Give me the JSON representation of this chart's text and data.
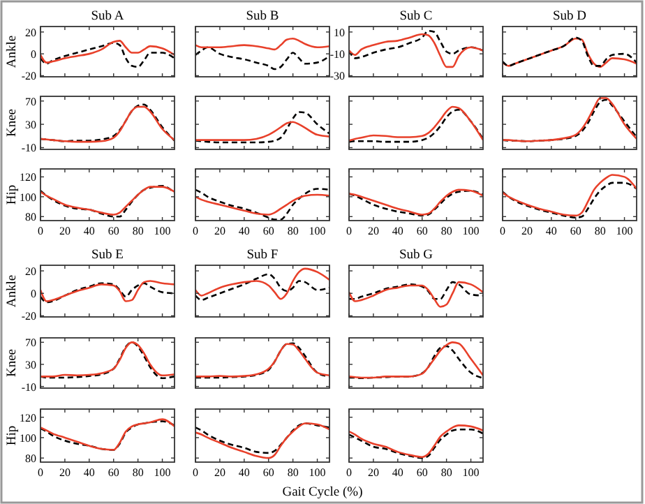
{
  "chart_data": [
    {
      "type": "line",
      "title": "Sub A",
      "ylabel": "Ankle",
      "x": [
        0,
        5,
        10,
        20,
        30,
        40,
        50,
        60,
        65,
        70,
        75,
        80,
        85,
        90,
        100,
        110
      ],
      "xlim": [
        0,
        110
      ],
      "xticks": [
        0,
        20,
        40,
        60,
        80,
        100
      ],
      "ylim": [
        -21,
        25
      ],
      "yticks": [
        -20,
        0,
        20
      ],
      "tick_labels": "y",
      "series": [
        {
          "color": "#000000",
          "line_style": "dashed",
          "values": [
            -4,
            -9,
            -6,
            -2,
            1,
            4,
            7,
            10,
            8,
            -4,
            -11,
            -12,
            -6,
            1,
            1,
            -4
          ]
        },
        {
          "color": "#e8402a",
          "line_style": "solid",
          "values": [
            -1,
            -8,
            -7,
            -4,
            -2,
            0,
            4,
            11,
            12,
            6,
            1,
            1,
            4,
            7,
            5,
            -1
          ]
        }
      ]
    },
    {
      "type": "line",
      "ylabel": "Knee",
      "x": [
        0,
        5,
        10,
        20,
        30,
        40,
        50,
        60,
        65,
        70,
        75,
        80,
        85,
        90,
        100,
        110
      ],
      "xlim": [
        0,
        110
      ],
      "xticks": [
        0,
        20,
        40,
        60,
        80,
        100
      ],
      "ylim": [
        -13,
        78
      ],
      "yticks": [
        -10,
        30,
        70
      ],
      "tick_labels": "y",
      "series": [
        {
          "color": "#000000",
          "line_style": "dashed",
          "values": [
            5,
            4,
            3,
            1,
            2,
            2,
            4,
            10,
            20,
            36,
            53,
            62,
            64,
            55,
            25,
            2
          ]
        },
        {
          "color": "#e8402a",
          "line_style": "solid",
          "values": [
            5,
            4,
            3,
            1,
            0,
            0,
            1,
            7,
            18,
            36,
            53,
            60,
            60,
            52,
            22,
            3
          ]
        }
      ]
    },
    {
      "type": "line",
      "ylabel": "Hip",
      "x": [
        0,
        5,
        10,
        20,
        30,
        40,
        50,
        60,
        65,
        70,
        75,
        80,
        85,
        90,
        100,
        110
      ],
      "xlim": [
        0,
        110
      ],
      "xticks": [
        0,
        20,
        40,
        60,
        80,
        100
      ],
      "ylim": [
        76,
        128
      ],
      "yticks": [
        80,
        100,
        120
      ],
      "series": [
        {
          "color": "#000000",
          "line_style": "dashed",
          "values": [
            106,
            101,
            97,
            91,
            88,
            87,
            83,
            80,
            80,
            87,
            95,
            102,
            107,
            109,
            111,
            104
          ]
        },
        {
          "color": "#e8402a",
          "line_style": "solid",
          "values": [
            105,
            101,
            98,
            92,
            89,
            87,
            84,
            82,
            84,
            90,
            96,
            102,
            107,
            110,
            110,
            105
          ]
        }
      ]
    },
    {
      "type": "line",
      "title": "Sub B",
      "x": [
        0,
        5,
        10,
        20,
        30,
        40,
        50,
        60,
        65,
        70,
        75,
        80,
        85,
        90,
        100,
        110
      ],
      "xlim": [
        0,
        110
      ],
      "xticks": [
        0,
        20,
        40,
        60,
        80,
        100
      ],
      "ylim": [
        -21,
        25
      ],
      "yticks": [
        -20,
        0,
        20
      ],
      "tick_labels": false,
      "series": [
        {
          "color": "#000000",
          "line_style": "dashed",
          "values": [
            -1,
            3,
            6,
            0,
            -3,
            -5,
            -8,
            -11,
            -14,
            -12,
            -5,
            1,
            -4,
            -9,
            -8,
            -2
          ]
        },
        {
          "color": "#e8402a",
          "line_style": "solid",
          "values": [
            8,
            6,
            6,
            6,
            7,
            8,
            7,
            5,
            4,
            8,
            13,
            14,
            12,
            9,
            6,
            7
          ]
        }
      ]
    },
    {
      "type": "line",
      "x": [
        0,
        5,
        10,
        20,
        30,
        40,
        50,
        60,
        65,
        70,
        75,
        80,
        85,
        90,
        100,
        110
      ],
      "xlim": [
        0,
        110
      ],
      "xticks": [
        0,
        20,
        40,
        60,
        80,
        100
      ],
      "ylim": [
        -13,
        78
      ],
      "yticks": [
        -10,
        30,
        70
      ],
      "tick_labels": false,
      "series": [
        {
          "color": "#000000",
          "line_style": "dashed",
          "values": [
            2,
            1,
            0,
            -1,
            -1,
            -1,
            -1,
            0,
            2,
            7,
            22,
            40,
            51,
            50,
            30,
            14
          ]
        },
        {
          "color": "#e8402a",
          "line_style": "solid",
          "values": [
            3,
            3,
            3,
            3,
            3,
            3,
            5,
            12,
            18,
            25,
            32,
            34,
            30,
            24,
            12,
            9
          ]
        }
      ]
    },
    {
      "type": "line",
      "x": [
        0,
        5,
        10,
        20,
        30,
        40,
        50,
        60,
        65,
        70,
        75,
        80,
        85,
        90,
        100,
        110
      ],
      "xlim": [
        0,
        110
      ],
      "xticks": [
        0,
        20,
        40,
        60,
        80,
        100
      ],
      "ylim": [
        76,
        128
      ],
      "yticks": [
        80,
        100,
        120
      ],
      "tick_labels": "x",
      "series": [
        {
          "color": "#000000",
          "line_style": "dashed",
          "values": [
            107,
            104,
            100,
            95,
            91,
            88,
            84,
            79,
            77,
            77,
            83,
            92,
            98,
            103,
            108,
            107
          ]
        },
        {
          "color": "#e8402a",
          "line_style": "solid",
          "values": [
            100,
            97,
            95,
            92,
            89,
            86,
            83,
            82,
            84,
            88,
            92,
            96,
            99,
            101,
            102,
            101
          ]
        }
      ]
    },
    {
      "type": "line",
      "title": "Sub C",
      "x": [
        0,
        5,
        10,
        20,
        30,
        40,
        50,
        60,
        65,
        70,
        75,
        80,
        85,
        90,
        100,
        110
      ],
      "xlim": [
        0,
        110
      ],
      "xticks": [
        0,
        20,
        40,
        60,
        80,
        100
      ],
      "ylim": [
        -31,
        15
      ],
      "yticks": [
        -30,
        -10,
        10
      ],
      "tick_labels": "y",
      "series": [
        {
          "color": "#000000",
          "line_style": "dashed",
          "values": [
            -7,
            -14,
            -13,
            -9,
            -6,
            -4,
            0,
            5,
            11,
            10,
            1,
            -8,
            -10,
            -7,
            -4,
            -7
          ]
        },
        {
          "color": "#e8402a",
          "line_style": "solid",
          "values": [
            -7,
            -11,
            -6,
            -2,
            1,
            2,
            5,
            8,
            7,
            0,
            -12,
            -22,
            -22,
            -12,
            -4,
            -7
          ]
        }
      ]
    },
    {
      "type": "line",
      "x": [
        0,
        5,
        10,
        20,
        30,
        40,
        50,
        60,
        65,
        70,
        75,
        80,
        85,
        90,
        100,
        110
      ],
      "xlim": [
        0,
        110
      ],
      "xticks": [
        0,
        20,
        40,
        60,
        80,
        100
      ],
      "ylim": [
        -13,
        78
      ],
      "yticks": [
        -10,
        30,
        70
      ],
      "tick_labels": false,
      "series": [
        {
          "color": "#000000",
          "line_style": "dashed",
          "values": [
            0,
            1,
            1,
            1,
            0,
            0,
            0,
            3,
            7,
            15,
            27,
            42,
            52,
            55,
            35,
            5
          ]
        },
        {
          "color": "#e8402a",
          "line_style": "solid",
          "values": [
            2,
            5,
            7,
            11,
            10,
            8,
            8,
            10,
            15,
            25,
            38,
            52,
            60,
            58,
            35,
            3
          ]
        }
      ]
    },
    {
      "type": "line",
      "x": [
        0,
        5,
        10,
        20,
        30,
        40,
        50,
        60,
        65,
        70,
        75,
        80,
        85,
        90,
        100,
        110
      ],
      "xlim": [
        0,
        110
      ],
      "xticks": [
        0,
        20,
        40,
        60,
        80,
        100
      ],
      "ylim": [
        76,
        128
      ],
      "yticks": [
        80,
        100,
        120
      ],
      "tick_labels": "x",
      "series": [
        {
          "color": "#000000",
          "line_style": "dashed",
          "values": [
            103,
            101,
            98,
            92,
            88,
            85,
            83,
            81,
            82,
            87,
            93,
            99,
            103,
            105,
            106,
            102
          ]
        },
        {
          "color": "#e8402a",
          "line_style": "solid",
          "values": [
            103,
            102,
            100,
            96,
            92,
            88,
            85,
            82,
            83,
            88,
            95,
            101,
            105,
            107,
            106,
            101
          ]
        }
      ]
    },
    {
      "type": "line",
      "title": "Sub D",
      "x": [
        0,
        5,
        10,
        20,
        30,
        40,
        50,
        60,
        65,
        70,
        75,
        80,
        85,
        90,
        100,
        110
      ],
      "xlim": [
        0,
        110
      ],
      "xticks": [
        0,
        20,
        40,
        60,
        80,
        100
      ],
      "ylim": [
        -21,
        25
      ],
      "yticks": [
        -20,
        0,
        20
      ],
      "tick_labels": false,
      "series": [
        {
          "color": "#e8402a",
          "line_style": "solid",
          "values": [
            -8,
            -11,
            -9,
            -5,
            -1,
            3,
            7,
            14,
            13,
            0,
            -9,
            -12,
            -8,
            -4,
            -5,
            -9
          ]
        },
        {
          "color": "#000000",
          "line_style": "dashed",
          "values": [
            -7,
            -11,
            -9,
            -5,
            -1,
            3,
            7,
            15,
            12,
            -2,
            -11,
            -11,
            -5,
            -1,
            0,
            -8
          ]
        }
      ]
    },
    {
      "type": "line",
      "x": [
        0,
        5,
        10,
        20,
        30,
        40,
        50,
        60,
        65,
        70,
        75,
        80,
        85,
        90,
        100,
        110
      ],
      "xlim": [
        0,
        110
      ],
      "xticks": [
        0,
        20,
        40,
        60,
        80,
        100
      ],
      "ylim": [
        -13,
        78
      ],
      "yticks": [
        -10,
        30,
        70
      ],
      "tick_labels": false,
      "series": [
        {
          "color": "#000000",
          "line_style": "dashed",
          "values": [
            3,
            2,
            2,
            1,
            2,
            3,
            5,
            10,
            18,
            32,
            52,
            68,
            72,
            62,
            35,
            8
          ]
        },
        {
          "color": "#e8402a",
          "line_style": "solid",
          "values": [
            3,
            3,
            2,
            1,
            2,
            3,
            6,
            12,
            22,
            38,
            58,
            75,
            75,
            65,
            30,
            5
          ]
        }
      ]
    },
    {
      "type": "line",
      "x": [
        0,
        5,
        10,
        20,
        30,
        40,
        50,
        60,
        65,
        70,
        75,
        80,
        85,
        90,
        100,
        110
      ],
      "xlim": [
        0,
        110
      ],
      "xticks": [
        0,
        20,
        40,
        60,
        80,
        100
      ],
      "ylim": [
        76,
        128
      ],
      "yticks": [
        80,
        100,
        120
      ],
      "tick_labels": "x",
      "series": [
        {
          "color": "#000000",
          "line_style": "dashed",
          "values": [
            105,
            100,
            96,
            91,
            87,
            84,
            81,
            79,
            80,
            88,
            98,
            106,
            111,
            114,
            114,
            108
          ]
        },
        {
          "color": "#e8402a",
          "line_style": "solid",
          "values": [
            104,
            100,
            97,
            92,
            88,
            85,
            82,
            81,
            84,
            95,
            107,
            114,
            119,
            122,
            120,
            108
          ]
        }
      ]
    },
    {
      "type": "line",
      "title": "Sub E",
      "ylabel": "Ankle",
      "x": [
        0,
        5,
        10,
        20,
        30,
        40,
        50,
        60,
        65,
        70,
        75,
        80,
        85,
        90,
        100,
        110
      ],
      "xlim": [
        0,
        110
      ],
      "xticks": [
        0,
        20,
        40,
        60,
        80,
        100
      ],
      "ylim": [
        -21,
        25
      ],
      "yticks": [
        -20,
        0,
        20
      ],
      "tick_labels": "y",
      "series": [
        {
          "color": "#000000",
          "line_style": "dashed",
          "values": [
            -3,
            -8,
            -7,
            -2,
            3,
            6,
            9,
            8,
            3,
            -3,
            3,
            7,
            9,
            6,
            1,
            0
          ]
        },
        {
          "color": "#e8402a",
          "line_style": "solid",
          "values": [
            3,
            -7,
            -6,
            -2,
            2,
            5,
            8,
            7,
            2,
            -7,
            -6,
            3,
            10,
            11,
            9,
            8
          ]
        }
      ]
    },
    {
      "type": "line",
      "ylabel": "Knee",
      "x": [
        0,
        5,
        10,
        20,
        30,
        40,
        50,
        60,
        65,
        70,
        75,
        80,
        85,
        90,
        100,
        110
      ],
      "xlim": [
        0,
        110
      ],
      "xticks": [
        0,
        20,
        40,
        60,
        80,
        100
      ],
      "ylim": [
        -13,
        78
      ],
      "yticks": [
        -10,
        30,
        70
      ],
      "tick_labels": "y",
      "series": [
        {
          "color": "#000000",
          "line_style": "dashed",
          "values": [
            8,
            6,
            6,
            6,
            7,
            9,
            12,
            22,
            40,
            62,
            70,
            62,
            45,
            25,
            5,
            8
          ]
        },
        {
          "color": "#e8402a",
          "line_style": "solid",
          "values": [
            8,
            8,
            8,
            11,
            10,
            11,
            14,
            22,
            38,
            60,
            70,
            65,
            50,
            30,
            10,
            12
          ]
        }
      ]
    },
    {
      "type": "line",
      "ylabel": "Hip",
      "x": [
        0,
        5,
        10,
        20,
        30,
        40,
        50,
        60,
        65,
        70,
        75,
        80,
        85,
        90,
        100,
        110
      ],
      "xlim": [
        0,
        110
      ],
      "xticks": [
        0,
        20,
        40,
        60,
        80,
        100
      ],
      "ylim": [
        76,
        128
      ],
      "yticks": [
        80,
        100,
        120
      ],
      "series": [
        {
          "color": "#000000",
          "line_style": "dashed",
          "values": [
            109,
            106,
            102,
            97,
            94,
            92,
            89,
            88,
            94,
            105,
            110,
            113,
            114,
            115,
            116,
            112
          ]
        },
        {
          "color": "#e8402a",
          "line_style": "solid",
          "values": [
            110,
            107,
            104,
            100,
            96,
            92,
            89,
            88,
            95,
            106,
            111,
            113,
            114,
            115,
            118,
            111
          ]
        }
      ]
    },
    {
      "type": "line",
      "title": "Sub F",
      "x": [
        0,
        5,
        10,
        20,
        30,
        40,
        50,
        60,
        65,
        70,
        75,
        80,
        85,
        90,
        100,
        110
      ],
      "xlim": [
        0,
        110
      ],
      "xticks": [
        0,
        20,
        40,
        60,
        80,
        100
      ],
      "ylim": [
        -21,
        25
      ],
      "yticks": [
        -20,
        0,
        20
      ],
      "tick_labels": false,
      "series": [
        {
          "color": "#000000",
          "line_style": "dashed",
          "values": [
            -2,
            -6,
            -4,
            0,
            4,
            8,
            13,
            17,
            13,
            5,
            2,
            5,
            11,
            10,
            3,
            5
          ]
        },
        {
          "color": "#e8402a",
          "line_style": "solid",
          "values": [
            3,
            -2,
            0,
            5,
            8,
            10,
            11,
            7,
            1,
            -5,
            0,
            11,
            19,
            22,
            19,
            12
          ]
        }
      ]
    },
    {
      "type": "line",
      "x": [
        0,
        5,
        10,
        20,
        30,
        40,
        50,
        60,
        65,
        70,
        75,
        80,
        85,
        90,
        100,
        110
      ],
      "xlim": [
        0,
        110
      ],
      "xticks": [
        0,
        20,
        40,
        60,
        80,
        100
      ],
      "ylim": [
        -13,
        78
      ],
      "yticks": [
        -10,
        30,
        70
      ],
      "tick_labels": false,
      "series": [
        {
          "color": "#000000",
          "line_style": "dashed",
          "values": [
            6,
            6,
            6,
            6,
            7,
            8,
            11,
            20,
            35,
            55,
            67,
            68,
            60,
            45,
            15,
            8
          ]
        },
        {
          "color": "#e8402a",
          "line_style": "solid",
          "values": [
            8,
            8,
            8,
            9,
            8,
            9,
            12,
            22,
            35,
            55,
            67,
            66,
            55,
            40,
            15,
            10
          ]
        }
      ]
    },
    {
      "type": "line",
      "xlabel": "Gait Cycle (%)",
      "x": [
        0,
        5,
        10,
        20,
        30,
        40,
        50,
        60,
        65,
        70,
        75,
        80,
        85,
        90,
        100,
        110
      ],
      "xlim": [
        0,
        110
      ],
      "xticks": [
        0,
        20,
        40,
        60,
        80,
        100
      ],
      "ylim": [
        76,
        128
      ],
      "yticks": [
        80,
        100,
        120
      ],
      "tick_labels": "x",
      "series": [
        {
          "color": "#000000",
          "line_style": "dashed",
          "values": [
            110,
            107,
            103,
            97,
            93,
            90,
            86,
            85,
            87,
            93,
            100,
            107,
            112,
            114,
            112,
            110
          ]
        },
        {
          "color": "#e8402a",
          "line_style": "solid",
          "values": [
            105,
            103,
            100,
            95,
            90,
            86,
            82,
            80,
            83,
            92,
            100,
            106,
            111,
            114,
            113,
            108
          ]
        }
      ]
    },
    {
      "type": "line",
      "title": "Sub G",
      "x": [
        0,
        5,
        10,
        20,
        30,
        40,
        50,
        60,
        65,
        70,
        75,
        80,
        85,
        90,
        100,
        110
      ],
      "xlim": [
        0,
        110
      ],
      "xticks": [
        0,
        20,
        40,
        60,
        80,
        100
      ],
      "ylim": [
        -21,
        25
      ],
      "yticks": [
        -20,
        0,
        20
      ],
      "tick_labels": false,
      "series": [
        {
          "color": "#000000",
          "line_style": "dashed",
          "values": [
            -5,
            -5,
            -3,
            0,
            4,
            6,
            8,
            6,
            2,
            -5,
            -5,
            3,
            10,
            8,
            -1,
            -2
          ]
        },
        {
          "color": "#e8402a",
          "line_style": "solid",
          "values": [
            1,
            -7,
            -6,
            -2,
            3,
            5,
            7,
            7,
            3,
            -5,
            -12,
            -10,
            0,
            10,
            8,
            1
          ]
        }
      ]
    },
    {
      "type": "line",
      "x": [
        0,
        5,
        10,
        20,
        30,
        40,
        50,
        60,
        65,
        70,
        75,
        80,
        85,
        90,
        100,
        110
      ],
      "xlim": [
        0,
        110
      ],
      "xticks": [
        0,
        20,
        40,
        60,
        80,
        100
      ],
      "ylim": [
        -13,
        78
      ],
      "yticks": [
        -10,
        30,
        70
      ],
      "tick_labels": false,
      "series": [
        {
          "color": "#000000",
          "line_style": "dashed",
          "values": [
            6,
            6,
            5,
            6,
            7,
            8,
            8,
            14,
            25,
            45,
            60,
            63,
            55,
            40,
            15,
            5
          ]
        },
        {
          "color": "#e8402a",
          "line_style": "solid",
          "values": [
            8,
            7,
            6,
            6,
            8,
            8,
            8,
            13,
            25,
            40,
            55,
            65,
            70,
            68,
            40,
            10
          ]
        }
      ]
    },
    {
      "type": "line",
      "x": [
        0,
        5,
        10,
        20,
        30,
        40,
        50,
        60,
        65,
        70,
        75,
        80,
        85,
        90,
        100,
        110
      ],
      "xlim": [
        0,
        110
      ],
      "xticks": [
        0,
        20,
        40,
        60,
        80,
        100
      ],
      "ylim": [
        76,
        128
      ],
      "yticks": [
        80,
        100,
        120
      ],
      "tick_labels": "x",
      "series": [
        {
          "color": "#000000",
          "line_style": "dashed",
          "values": [
            103,
            100,
            97,
            91,
            89,
            85,
            82,
            80,
            82,
            90,
            98,
            103,
            107,
            108,
            108,
            104
          ]
        },
        {
          "color": "#e8402a",
          "line_style": "solid",
          "values": [
            106,
            103,
            99,
            94,
            91,
            86,
            83,
            81,
            84,
            92,
            101,
            106,
            110,
            112,
            111,
            107
          ]
        }
      ]
    }
  ]
}
